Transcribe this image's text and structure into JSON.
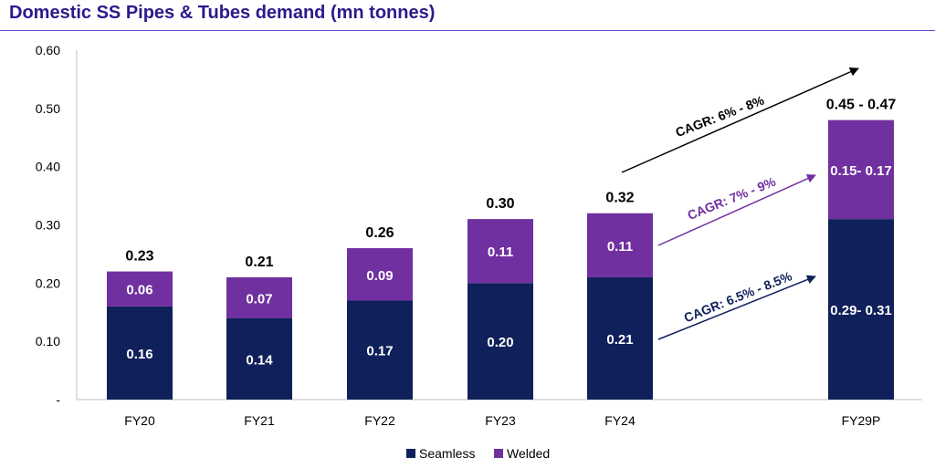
{
  "title": "Domestic SS Pipes & Tubes demand (mn tonnes)",
  "colors": {
    "seamless": "#10205a",
    "welded": "#7030a0",
    "black": "#000000",
    "title": "#2b1a8c"
  },
  "chart_data": {
    "type": "bar",
    "stacked": true,
    "title": "Domestic SS Pipes & Tubes demand (mn tonnes)",
    "categories": [
      "FY20",
      "FY21",
      "FY22",
      "FY23",
      "FY24",
      "FY29P"
    ],
    "series": [
      {
        "name": "Seamless",
        "values": [
          0.16,
          0.14,
          0.17,
          0.2,
          0.21,
          0.31
        ],
        "labels": [
          "0.16",
          "0.14",
          "0.17",
          "0.20",
          "0.21",
          "0.29- 0.31"
        ]
      },
      {
        "name": "Welded",
        "values": [
          0.06,
          0.07,
          0.09,
          0.11,
          0.11,
          0.17
        ],
        "labels": [
          "0.06",
          "0.07",
          "0.09",
          "0.11",
          "0.11",
          "0.15- 0.17"
        ]
      }
    ],
    "totals": [
      "0.23",
      "0.21",
      "0.26",
      "0.30",
      "0.32",
      "0.45 -  0.47"
    ],
    "y_ticks": [
      "-",
      "0.10",
      "0.20",
      "0.30",
      "0.40",
      "0.50",
      "0.60"
    ],
    "ylim": [
      0,
      0.6
    ],
    "legend": {
      "position": "bottom",
      "items": [
        "Seamless",
        "Welded"
      ]
    },
    "annotations": [
      "CAGR: 6% - 8%",
      "CAGR: 7% - 9%",
      "CAGR: 6.5% - 8.5%"
    ],
    "grid": false
  }
}
